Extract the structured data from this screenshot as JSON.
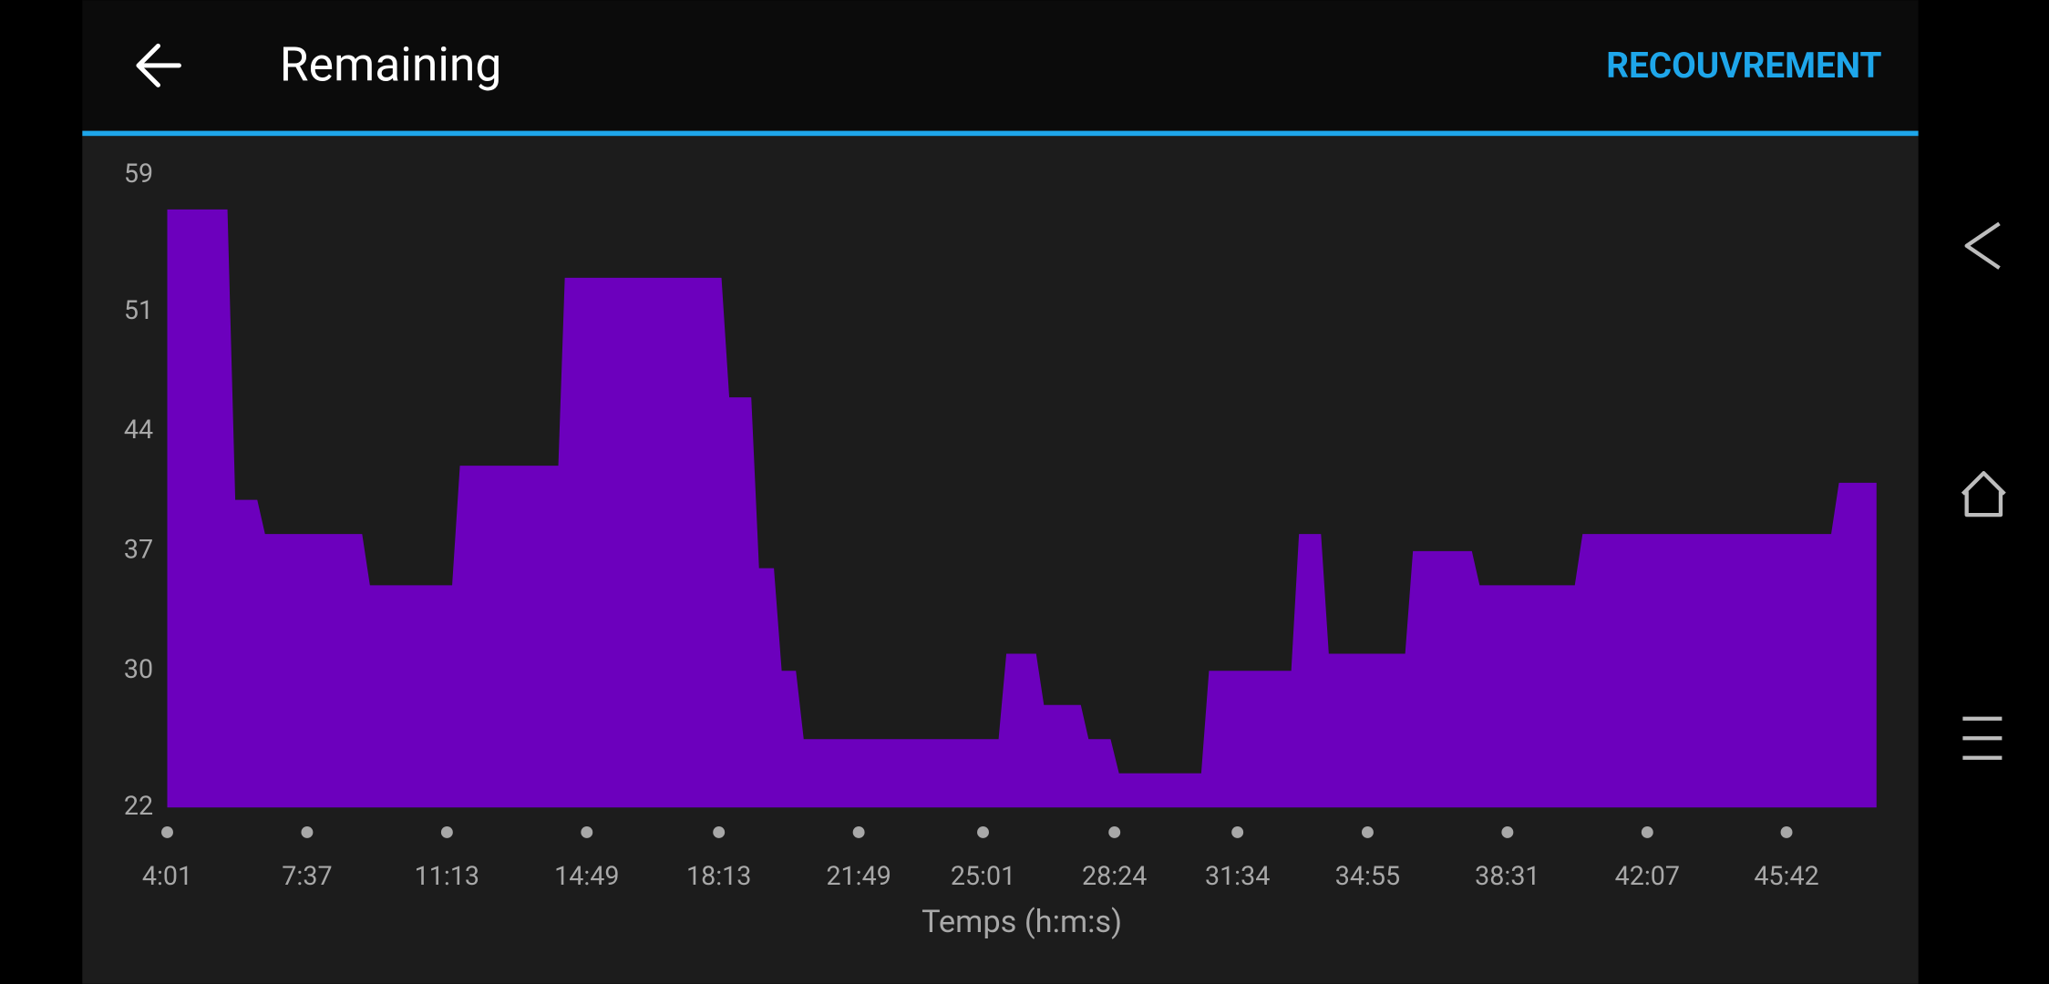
{
  "header": {
    "title": "Remaining",
    "action": "RECOUVREMENT"
  },
  "chart_data": {
    "type": "area",
    "x_label": "Temps (h:m:s)",
    "color": "#6c00bd",
    "x": [
      241,
      334,
      346,
      380,
      392,
      542,
      554,
      681,
      693,
      845,
      855,
      1097,
      1109,
      1143,
      1155,
      1178,
      1190,
      1212,
      1224,
      1525,
      1537,
      1583,
      1595,
      1652,
      1664,
      1698,
      1711,
      1838,
      1850,
      1977,
      1989,
      2023,
      2035,
      2153,
      2165,
      2256,
      2268,
      2415,
      2427,
      2811,
      2823,
      2881
    ],
    "values": [
      57,
      57,
      40,
      40,
      38,
      38,
      35,
      35,
      42,
      42,
      53,
      53,
      46,
      46,
      36,
      36,
      30,
      30,
      26,
      26,
      31,
      31,
      28,
      28,
      26,
      26,
      24,
      24,
      30,
      30,
      38,
      38,
      31,
      31,
      37,
      37,
      35,
      35,
      38,
      38,
      41,
      41
    ],
    "xlim": [
      241,
      2881
    ],
    "ylim": [
      22,
      59
    ],
    "xticks": [
      {
        "value": 241,
        "label": "4:01"
      },
      {
        "value": 457,
        "label": "7:37"
      },
      {
        "value": 673,
        "label": "11:13"
      },
      {
        "value": 889,
        "label": "14:49"
      },
      {
        "value": 1093,
        "label": "18:13"
      },
      {
        "value": 1309,
        "label": "21:49"
      },
      {
        "value": 1501,
        "label": "25:01"
      },
      {
        "value": 1704,
        "label": "28:24"
      },
      {
        "value": 1894,
        "label": "31:34"
      },
      {
        "value": 2095,
        "label": "34:55"
      },
      {
        "value": 2311,
        "label": "38:31"
      },
      {
        "value": 2527,
        "label": "42:07"
      },
      {
        "value": 2742,
        "label": "45:42"
      }
    ],
    "yticks": [
      22,
      30,
      37,
      44,
      51,
      59
    ]
  }
}
